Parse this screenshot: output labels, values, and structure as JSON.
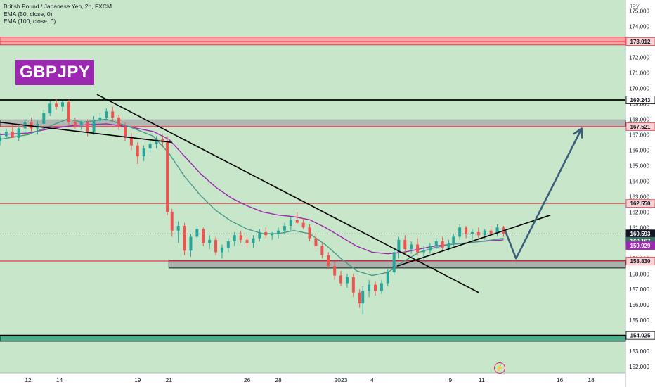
{
  "legend": {
    "line1": "British Pound / Japanese Yen, 2h, FXCM",
    "line2": "EMA (50, close, 0)",
    "line3": "EMA (100, close, 0)"
  },
  "ticker_label": "GBPJPY",
  "price_axis_unit": "JPY",
  "bolt_icon": "lightning-icon",
  "colors": {
    "bull": "#26a69a",
    "bear": "#ef5350",
    "ema50": "#4a9a8a",
    "ema100": "#9c27b0",
    "level": "#f23645",
    "ticker_bg": "#9c27b0",
    "arrow": "#3b5f7a",
    "background": "#c8e6c9",
    "current_price_bg": "#131722"
  },
  "chart_data": {
    "type": "candlestick",
    "symbol": "GBPJPY",
    "interval": "2h",
    "y_axis": {
      "range": [
        151.6,
        175.7
      ],
      "ticks": [
        152.0,
        153.0,
        154.0,
        155.0,
        156.0,
        157.0,
        158.0,
        159.0,
        160.0,
        161.0,
        162.0,
        163.0,
        164.0,
        165.0,
        166.0,
        167.0,
        168.0,
        169.0,
        170.0,
        171.0,
        172.0,
        173.0,
        174.0,
        175.0
      ]
    },
    "x_axis": {
      "ticks": [
        "12",
        "14",
        "19",
        "21",
        "26",
        "28",
        "2023",
        "4",
        "9",
        "11",
        "16",
        "18"
      ],
      "tick_positions": [
        0,
        2,
        7,
        9,
        14,
        16,
        20,
        22,
        27,
        29,
        34,
        36
      ],
      "range": [
        -1.8,
        38.2
      ]
    },
    "price_levels": [
      {
        "label": "173.012",
        "value": 173.012,
        "style": "red-band"
      },
      {
        "label": "169.243",
        "value": 169.243,
        "style": "black-line"
      },
      {
        "label": "167.521",
        "value": 167.521,
        "style": "red-line"
      },
      {
        "label": "162.550",
        "value": 162.55,
        "style": "red-line"
      },
      {
        "label": "158.830",
        "value": 158.83,
        "style": "red-line"
      },
      {
        "label": "154.025",
        "value": 154.025,
        "style": "black-line"
      }
    ],
    "zones": [
      {
        "name": "upper-resistance-zone",
        "from": 172.8,
        "to": 173.3
      },
      {
        "name": "resistance-zone",
        "from": 167.5,
        "to": 167.95
      },
      {
        "name": "support-zone",
        "from": 158.38,
        "to": 158.88
      },
      {
        "name": "lower-zone",
        "from": 153.65,
        "to": 154.03
      }
    ],
    "price_tags": [
      {
        "label": "160.593",
        "sublabel": "01:41:47",
        "value": 160.593,
        "kind": "current"
      },
      {
        "label": "160.167",
        "value": 160.167,
        "kind": "ema100"
      },
      {
        "label": "159.929",
        "value": 159.929,
        "kind": "ema50"
      }
    ],
    "current_price": 160.593,
    "countdown": "01:41:47",
    "candles": [
      [
        -1.8,
        166.6,
        167.1,
        166.3,
        166.9
      ],
      [
        -1.4,
        166.9,
        167.4,
        166.7,
        167.2
      ],
      [
        -1.0,
        167.2,
        167.7,
        167.0,
        166.8
      ],
      [
        -0.6,
        166.8,
        167.6,
        166.6,
        167.4
      ],
      [
        -0.2,
        167.4,
        168.0,
        167.1,
        167.8
      ],
      [
        0.2,
        167.8,
        168.1,
        167.2,
        167.4
      ],
      [
        0.6,
        167.4,
        167.9,
        167.0,
        167.7
      ],
      [
        1.0,
        167.7,
        168.6,
        167.5,
        168.4
      ],
      [
        1.4,
        168.4,
        169.2,
        168.2,
        169.0
      ],
      [
        1.8,
        169.0,
        169.3,
        168.6,
        168.8
      ],
      [
        2.2,
        168.8,
        169.2,
        168.5,
        169.1
      ],
      [
        2.6,
        169.1,
        169.25,
        167.6,
        167.8
      ],
      [
        3.0,
        167.8,
        168.1,
        167.4,
        167.6
      ],
      [
        3.4,
        167.6,
        167.9,
        167.3,
        167.8
      ],
      [
        3.8,
        167.8,
        168.0,
        166.9,
        167.2
      ],
      [
        4.2,
        167.2,
        168.2,
        167.0,
        167.9
      ],
      [
        4.6,
        167.9,
        168.4,
        167.6,
        168.1
      ],
      [
        5.0,
        168.1,
        168.7,
        167.9,
        168.5
      ],
      [
        5.4,
        168.5,
        168.8,
        167.9,
        168.1
      ],
      [
        5.8,
        168.1,
        168.3,
        167.3,
        167.5
      ],
      [
        6.2,
        167.5,
        167.8,
        166.6,
        166.8
      ],
      [
        6.6,
        166.8,
        167.1,
        166.0,
        166.3
      ],
      [
        7.0,
        166.3,
        166.5,
        165.1,
        165.6
      ],
      [
        7.4,
        165.6,
        166.3,
        165.3,
        166.1
      ],
      [
        7.8,
        166.1,
        166.6,
        165.8,
        166.4
      ],
      [
        8.2,
        166.4,
        166.9,
        166.1,
        166.7
      ],
      [
        8.6,
        166.7,
        167.0,
        166.2,
        166.5
      ],
      [
        8.9,
        166.5,
        166.9,
        161.8,
        162.0
      ],
      [
        9.2,
        162.0,
        162.2,
        160.4,
        160.8
      ],
      [
        9.6,
        160.8,
        161.4,
        160.0,
        161.1
      ],
      [
        10.0,
        161.1,
        161.3,
        159.2,
        159.5
      ],
      [
        10.4,
        159.5,
        160.6,
        159.1,
        160.4
      ],
      [
        10.8,
        160.4,
        161.1,
        160.2,
        160.9
      ],
      [
        11.2,
        160.9,
        161.0,
        159.8,
        160.0
      ],
      [
        11.6,
        160.0,
        160.5,
        159.6,
        160.2
      ],
      [
        12.0,
        160.2,
        160.4,
        159.2,
        159.4
      ],
      [
        12.4,
        159.4,
        159.9,
        159.0,
        159.7
      ],
      [
        12.8,
        159.7,
        160.3,
        159.4,
        160.1
      ],
      [
        13.2,
        160.1,
        160.7,
        159.8,
        160.5
      ],
      [
        13.6,
        160.5,
        160.8,
        160.0,
        160.2
      ],
      [
        14.0,
        160.2,
        160.4,
        159.7,
        160.0
      ],
      [
        14.4,
        160.0,
        160.5,
        159.7,
        160.3
      ],
      [
        14.8,
        160.3,
        160.9,
        160.1,
        160.7
      ],
      [
        15.2,
        160.7,
        161.0,
        160.3,
        160.5
      ],
      [
        15.6,
        160.5,
        160.7,
        160.2,
        160.6
      ],
      [
        16.0,
        160.6,
        161.0,
        160.3,
        160.8
      ],
      [
        16.4,
        160.8,
        161.3,
        160.6,
        161.1
      ],
      [
        16.8,
        161.1,
        161.7,
        160.8,
        161.5
      ],
      [
        17.2,
        161.5,
        162.0,
        161.2,
        161.3
      ],
      [
        17.6,
        161.3,
        161.6,
        160.9,
        161.0
      ],
      [
        18.0,
        161.0,
        161.2,
        160.1,
        160.3
      ],
      [
        18.4,
        160.3,
        160.6,
        159.6,
        159.8
      ],
      [
        18.8,
        159.8,
        160.0,
        159.0,
        159.2
      ],
      [
        19.2,
        159.2,
        159.4,
        158.3,
        158.5
      ],
      [
        19.6,
        158.5,
        158.8,
        157.6,
        157.9
      ],
      [
        20.0,
        157.9,
        158.2,
        157.2,
        157.4
      ],
      [
        20.4,
        157.4,
        158.0,
        157.1,
        157.8
      ],
      [
        20.8,
        157.8,
        158.0,
        156.5,
        156.8
      ],
      [
        21.2,
        156.8,
        157.0,
        155.8,
        156.1
      ],
      [
        21.4,
        156.1,
        157.2,
        155.4,
        156.9
      ],
      [
        21.8,
        156.9,
        157.6,
        156.5,
        157.3
      ],
      [
        22.2,
        157.3,
        157.5,
        156.6,
        156.9
      ],
      [
        22.6,
        156.9,
        157.6,
        156.7,
        157.4
      ],
      [
        23.0,
        157.4,
        158.3,
        157.2,
        158.1
      ],
      [
        23.4,
        158.1,
        159.6,
        157.9,
        159.4
      ],
      [
        23.7,
        159.4,
        160.4,
        159.0,
        160.2
      ],
      [
        24.1,
        160.2,
        160.5,
        159.3,
        159.6
      ],
      [
        24.5,
        159.6,
        160.1,
        159.3,
        159.9
      ],
      [
        24.9,
        159.9,
        160.3,
        159.2,
        159.4
      ],
      [
        25.3,
        159.4,
        159.8,
        158.9,
        159.5
      ],
      [
        25.7,
        159.5,
        160.0,
        159.3,
        159.8
      ],
      [
        26.1,
        159.8,
        160.3,
        159.6,
        160.1
      ],
      [
        26.5,
        160.1,
        160.4,
        159.5,
        159.7
      ],
      [
        26.9,
        159.7,
        160.2,
        159.5,
        160.0
      ],
      [
        27.2,
        160.0,
        160.6,
        159.8,
        160.4
      ],
      [
        27.6,
        160.4,
        161.2,
        160.2,
        161.0
      ],
      [
        28.0,
        161.0,
        161.1,
        160.3,
        160.6
      ],
      [
        28.4,
        160.6,
        160.9,
        160.2,
        160.7
      ],
      [
        28.8,
        160.7,
        161.0,
        160.3,
        160.5
      ],
      [
        29.2,
        160.5,
        160.9,
        160.2,
        160.8
      ],
      [
        29.6,
        160.8,
        161.1,
        160.5,
        160.6
      ],
      [
        30.0,
        160.6,
        161.2,
        160.4,
        161.0
      ],
      [
        30.4,
        161.0,
        161.1,
        160.4,
        160.6
      ]
    ],
    "ema50": {
      "name": "EMA (50, close, 0)",
      "points": [
        [
          -1.8,
          166.7
        ],
        [
          0,
          167.0
        ],
        [
          1.5,
          167.6
        ],
        [
          2.5,
          168.0
        ],
        [
          3.5,
          167.8
        ],
        [
          5,
          168.0
        ],
        [
          6.5,
          167.5
        ],
        [
          8,
          166.9
        ],
        [
          9,
          165.8
        ],
        [
          10,
          164.3
        ],
        [
          11,
          163.1
        ],
        [
          12,
          162.1
        ],
        [
          13,
          161.4
        ],
        [
          14,
          160.9
        ],
        [
          15,
          160.6
        ],
        [
          16,
          160.6
        ],
        [
          17,
          160.8
        ],
        [
          18,
          160.6
        ],
        [
          19,
          159.9
        ],
        [
          20,
          159.0
        ],
        [
          21,
          158.2
        ],
        [
          22,
          157.9
        ],
        [
          23,
          158.1
        ],
        [
          24,
          158.8
        ],
        [
          25,
          159.4
        ],
        [
          26,
          159.7
        ],
        [
          27,
          159.9
        ],
        [
          28,
          160.0
        ],
        [
          29,
          160.1
        ],
        [
          30.4,
          160.3
        ]
      ]
    },
    "ema100": {
      "name": "EMA (100, close, 0)",
      "points": [
        [
          -1.8,
          167.0
        ],
        [
          0,
          167.1
        ],
        [
          1.5,
          167.4
        ],
        [
          3,
          167.6
        ],
        [
          5,
          167.7
        ],
        [
          6.5,
          167.5
        ],
        [
          8,
          167.2
        ],
        [
          9,
          166.7
        ],
        [
          10,
          165.6
        ],
        [
          11,
          164.5
        ],
        [
          12,
          163.6
        ],
        [
          13,
          162.9
        ],
        [
          14,
          162.4
        ],
        [
          15,
          162.0
        ],
        [
          16,
          161.8
        ],
        [
          17,
          161.7
        ],
        [
          18,
          161.5
        ],
        [
          19,
          161.0
        ],
        [
          20,
          160.4
        ],
        [
          21,
          159.8
        ],
        [
          22,
          159.4
        ],
        [
          23,
          159.3
        ],
        [
          24,
          159.4
        ],
        [
          25,
          159.6
        ],
        [
          26,
          159.8
        ],
        [
          27,
          159.9
        ],
        [
          28,
          160.0
        ],
        [
          29,
          160.1
        ],
        [
          30.4,
          160.2
        ]
      ]
    },
    "trendlines": [
      {
        "name": "downtrend-line",
        "from": [
          4.4,
          169.6
        ],
        "to": [
          28.8,
          156.8
        ]
      },
      {
        "name": "rising-support-line",
        "from": [
          23.6,
          158.5
        ],
        "to": [
          33.4,
          161.8
        ]
      },
      {
        "name": "early-descending-line",
        "from": [
          -1.8,
          167.8
        ],
        "to": [
          9.2,
          166.5
        ]
      }
    ],
    "projection": {
      "name": "projection-arrow",
      "points": [
        [
          30.5,
          160.8
        ],
        [
          31.2,
          159.0
        ],
        [
          35.4,
          167.4
        ]
      ]
    }
  }
}
